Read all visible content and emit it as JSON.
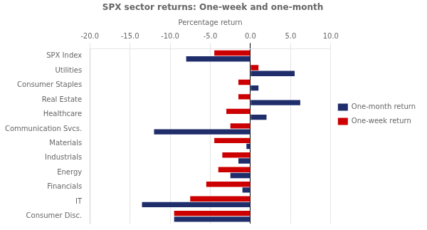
{
  "chart_data": {
    "type": "bar",
    "orientation": "horizontal",
    "title": "SPX sector returns: One-week and one-month",
    "xlabel": "Percentage return",
    "categories": [
      "SPX Index",
      "Utilities",
      "Consumer Staples",
      "Real Estate",
      "Healthcare",
      "Communication Svcs.",
      "Materials",
      "Industrials",
      "Energy",
      "Financials",
      "IT",
      "Consumer Disc."
    ],
    "series": [
      {
        "name": "One-week return",
        "color": "#cc0000",
        "values": [
          -4.5,
          1.0,
          -1.5,
          -1.5,
          -3.0,
          -2.5,
          -4.5,
          -3.5,
          -4.0,
          -5.5,
          -7.5,
          -9.5
        ]
      },
      {
        "name": "One-month return",
        "color": "#1f2d6b",
        "values": [
          -8.0,
          5.5,
          1.0,
          6.2,
          2.0,
          -12.0,
          -0.5,
          -1.5,
          -2.5,
          -1.0,
          -13.5,
          -9.5
        ]
      }
    ],
    "xlim": [
      -20.0,
      10.0
    ],
    "xticks": [
      {
        "value": -20,
        "label": "-20.0"
      },
      {
        "value": -15,
        "label": "-15.0"
      },
      {
        "value": -10,
        "label": "-10.0"
      },
      {
        "value": -5,
        "label": "-5.0"
      },
      {
        "value": 0,
        "label": "0.0"
      },
      {
        "value": 5,
        "label": "5.0"
      },
      {
        "value": 10,
        "label": "10.0"
      }
    ],
    "grid": true,
    "legend": "right"
  }
}
